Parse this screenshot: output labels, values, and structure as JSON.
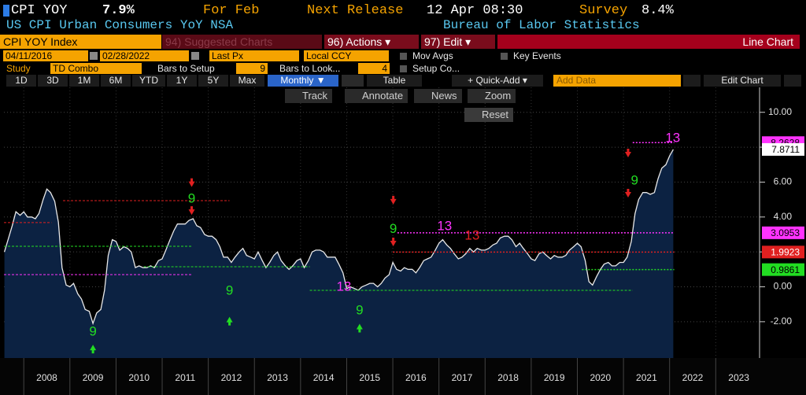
{
  "header": {
    "ticker": "CPI YOY",
    "value": "7.9%",
    "period": "For Feb",
    "next_release_label": "Next Release",
    "next_release": "12 Apr 08:30",
    "survey_label": "Survey",
    "survey": "8.4%",
    "description": "US CPI Urban Consumers YoY NSA",
    "source": "Bureau of Labor Statistics"
  },
  "menu": {
    "security": "CPI YOY Index",
    "suggested": "94) Suggested Charts",
    "actions": "96) Actions ▾",
    "edit": "97) Edit ▾",
    "chart_type": "Line Chart"
  },
  "settings": {
    "start": "04/11/2016",
    "end": "02/28/2022",
    "field": "Last Px",
    "currency": "Local CCY",
    "mov_avgs": "Mov Avgs",
    "key_events": "Key Events",
    "study_label": "Study",
    "study": "TD Combo",
    "bars_setup_label": "Bars to Setup",
    "bars_setup": "9",
    "bars_look_label": "Bars to Look...",
    "bars_look": "4",
    "setup_co": "Setup Co..."
  },
  "toolbar": {
    "ranges": [
      "1D",
      "3D",
      "1M",
      "6M",
      "YTD",
      "1Y",
      "5Y",
      "Max"
    ],
    "frequency": "Monthly ▼",
    "table": "Table",
    "quick_add": "+ Quick-Add ▾",
    "add_data": "Add Data",
    "edit_chart": "Edit Chart"
  },
  "chart_tools": {
    "track": "Track",
    "annotate": "Annotate",
    "news": "News",
    "zoom": "Zoom",
    "reset": "Reset"
  },
  "chart_data": {
    "type": "line",
    "x": [
      2007.58,
      2007.67,
      2007.75,
      2007.83,
      2007.92,
      2008,
      2008.08,
      2008.17,
      2008.25,
      2008.33,
      2008.42,
      2008.5,
      2008.58,
      2008.67,
      2008.75,
      2008.83,
      2008.92,
      2009,
      2009.08,
      2009.17,
      2009.25,
      2009.33,
      2009.42,
      2009.5,
      2009.58,
      2009.67,
      2009.75,
      2009.83,
      2009.92,
      2010,
      2010.08,
      2010.17,
      2010.25,
      2010.33,
      2010.42,
      2010.5,
      2010.58,
      2010.67,
      2010.75,
      2010.83,
      2010.92,
      2011,
      2011.08,
      2011.17,
      2011.25,
      2011.33,
      2011.42,
      2011.5,
      2011.58,
      2011.67,
      2011.75,
      2011.83,
      2011.92,
      2012,
      2012.08,
      2012.17,
      2012.25,
      2012.33,
      2012.42,
      2012.5,
      2012.58,
      2012.67,
      2012.75,
      2012.83,
      2012.92,
      2013,
      2013.08,
      2013.17,
      2013.25,
      2013.33,
      2013.42,
      2013.5,
      2013.58,
      2013.67,
      2013.75,
      2013.83,
      2013.92,
      2014,
      2014.08,
      2014.17,
      2014.25,
      2014.33,
      2014.42,
      2014.5,
      2014.58,
      2014.67,
      2014.75,
      2014.83,
      2014.92,
      2015,
      2015.08,
      2015.17,
      2015.25,
      2015.33,
      2015.42,
      2015.5,
      2015.58,
      2015.67,
      2015.75,
      2015.83,
      2015.92,
      2016,
      2016.08,
      2016.17,
      2016.25,
      2016.33,
      2016.42,
      2016.5,
      2016.58,
      2016.67,
      2016.75,
      2016.83,
      2016.92,
      2017,
      2017.08,
      2017.17,
      2017.25,
      2017.33,
      2017.42,
      2017.5,
      2017.58,
      2017.67,
      2017.75,
      2017.83,
      2017.92,
      2018,
      2018.08,
      2018.17,
      2018.25,
      2018.33,
      2018.42,
      2018.5,
      2018.58,
      2018.67,
      2018.75,
      2018.83,
      2018.92,
      2019,
      2019.08,
      2019.17,
      2019.25,
      2019.33,
      2019.42,
      2019.5,
      2019.58,
      2019.67,
      2019.75,
      2019.83,
      2019.92,
      2020,
      2020.08,
      2020.17,
      2020.25,
      2020.33,
      2020.42,
      2020.5,
      2020.58,
      2020.67,
      2020.75,
      2020.83,
      2020.92,
      2021,
      2021.08,
      2021.17,
      2021.25,
      2021.33,
      2021.42,
      2021.5,
      2021.58,
      2021.67,
      2021.75,
      2021.83,
      2021.92,
      2022,
      2022.08
    ],
    "series": [
      {
        "name": "CPI YOY Index",
        "color": "#e8e8e8",
        "fill": "#0c2242",
        "values": [
          2.0,
          2.8,
          3.5,
          4.3,
          4.1,
          4.3,
          4.0,
          4.0,
          3.9,
          4.2,
          5.0,
          5.6,
          5.4,
          4.9,
          3.7,
          1.1,
          0.1,
          0.0,
          0.2,
          -0.4,
          -0.7,
          -1.3,
          -1.4,
          -2.1,
          -1.5,
          -1.3,
          -0.2,
          1.8,
          2.7,
          2.6,
          2.1,
          2.3,
          2.2,
          2.0,
          1.1,
          1.2,
          1.1,
          1.1,
          1.2,
          1.1,
          1.5,
          1.6,
          2.1,
          2.7,
          3.2,
          3.6,
          3.6,
          3.6,
          3.8,
          3.9,
          3.5,
          3.4,
          3.0,
          2.9,
          2.9,
          2.7,
          2.3,
          1.7,
          1.7,
          1.4,
          1.7,
          2.0,
          2.2,
          1.8,
          1.7,
          1.6,
          2.0,
          1.5,
          1.1,
          1.4,
          1.8,
          2.0,
          1.5,
          1.2,
          1.0,
          1.2,
          1.5,
          1.6,
          1.1,
          1.5,
          2.0,
          2.1,
          2.1,
          2.0,
          1.7,
          1.7,
          1.7,
          1.3,
          0.8,
          -0.1,
          0.0,
          -0.1,
          -0.2,
          0.0,
          0.1,
          0.2,
          0.2,
          0.0,
          0.2,
          0.5,
          0.7,
          1.4,
          1.0,
          0.9,
          1.1,
          1.0,
          1.0,
          0.8,
          1.1,
          1.5,
          1.6,
          1.7,
          2.1,
          2.5,
          2.7,
          2.4,
          2.2,
          1.9,
          1.6,
          1.7,
          1.9,
          2.2,
          2.0,
          2.2,
          2.1,
          2.1,
          2.2,
          2.4,
          2.5,
          2.8,
          2.9,
          2.9,
          2.7,
          2.3,
          2.5,
          2.2,
          1.9,
          1.6,
          1.5,
          1.9,
          2.0,
          1.8,
          1.6,
          1.8,
          1.7,
          1.7,
          1.8,
          2.1,
          2.3,
          2.5,
          2.3,
          1.5,
          0.3,
          0.1,
          0.6,
          1.0,
          1.3,
          1.4,
          1.2,
          1.2,
          1.4,
          1.4,
          1.7,
          2.6,
          4.2,
          5.0,
          5.4,
          5.4,
          5.3,
          5.4,
          6.2,
          6.8,
          7.0,
          7.5,
          7.8711
        ]
      }
    ],
    "xlim": [
      2007.57,
      2023.95
    ],
    "xticks": [
      2008,
      2009,
      2010,
      2011,
      2012,
      2013,
      2014,
      2015,
      2016,
      2017,
      2018,
      2019,
      2020,
      2021,
      2022,
      2023
    ],
    "ylim": [
      -4.08,
      11.43
    ],
    "yticks": [
      {
        "value": -2,
        "label": "-2.00"
      },
      {
        "value": 0,
        "label": "0.00"
      },
      {
        "value": 2,
        "label": "2.00"
      },
      {
        "value": 4,
        "label": "4.00"
      },
      {
        "value": 6,
        "label": "6.00"
      },
      {
        "value": 8,
        "label": "8.00"
      },
      {
        "value": 10,
        "label": "10.00"
      }
    ],
    "grid": true,
    "reference_lines": [
      {
        "value": 8.2628,
        "from": 2021.2,
        "to": 2022.1,
        "color": "#ff33ff",
        "label_color": "#000000"
      },
      {
        "value": 3.0953,
        "from": 2016.1,
        "to": 2022.1,
        "color": "#ff33ff",
        "label_color": "#000000"
      },
      {
        "value": 1.9923,
        "from": 2016.0,
        "to": 2022.1,
        "color": "#e02020",
        "label_color": "#ffffff"
      },
      {
        "value": 0.9861,
        "from": 2020.1,
        "to": 2022.1,
        "color": "#22dd22",
        "label_color": "#000000"
      }
    ],
    "td_levels": [
      {
        "value": 4.94,
        "from": 2008.85,
        "to": 2012.46,
        "color": "#e02020"
      },
      {
        "value": 3.68,
        "from": 2007.57,
        "to": 2008.6,
        "color": "#e02020"
      },
      {
        "value": 2.32,
        "from": 2007.57,
        "to": 2011.65,
        "color": "#22dd22"
      },
      {
        "value": 0.7,
        "from": 2007.57,
        "to": 2011.65,
        "color": "#ff33ff"
      },
      {
        "value": 1.15,
        "from": 2010.6,
        "to": 2014.2,
        "color": "#22dd22"
      },
      {
        "value": -0.2,
        "from": 2014.2,
        "to": 2021.2,
        "color": "#22dd22"
      }
    ],
    "annotations": [
      {
        "text": "9",
        "x": 2009.5,
        "y": -2.6,
        "color": "#22dd22"
      },
      {
        "text": "9",
        "x": 2011.64,
        "y": 5.03,
        "color": "#22dd22"
      },
      {
        "text": "9",
        "x": 2012.46,
        "y": -0.25,
        "color": "#22dd22"
      },
      {
        "text": "13",
        "x": 2014.94,
        "y": -0.02,
        "color": "#ff33ff"
      },
      {
        "text": "9",
        "x": 2015.28,
        "y": -1.38,
        "color": "#22dd22"
      },
      {
        "text": "9",
        "x": 2016.01,
        "y": 3.3,
        "color": "#22dd22"
      },
      {
        "text": "13",
        "x": 2017.12,
        "y": 3.45,
        "color": "#ff33ff"
      },
      {
        "text": "13",
        "x": 2017.72,
        "y": 2.9,
        "color": "#e02020"
      },
      {
        "text": "9",
        "x": 2021.24,
        "y": 6.07,
        "color": "#22dd22"
      },
      {
        "text": "13",
        "x": 2022.07,
        "y": 8.5,
        "color": "#ff33ff"
      }
    ],
    "arrows": [
      {
        "x": 2009.5,
        "y": -3.5,
        "dir": "up",
        "color": "#22dd22"
      },
      {
        "x": 2011.64,
        "y": 5.9,
        "dir": "down",
        "color": "#e02020"
      },
      {
        "x": 2011.64,
        "y": 4.3,
        "dir": "down",
        "color": "#e02020"
      },
      {
        "x": 2012.46,
        "y": -1.9,
        "dir": "up",
        "color": "#22dd22"
      },
      {
        "x": 2015.28,
        "y": -2.3,
        "dir": "up",
        "color": "#22dd22"
      },
      {
        "x": 2016.01,
        "y": 4.9,
        "dir": "down",
        "color": "#e02020"
      },
      {
        "x": 2016.01,
        "y": 2.5,
        "dir": "down",
        "color": "#e02020"
      },
      {
        "x": 2021.1,
        "y": 7.6,
        "dir": "down",
        "color": "#e02020"
      },
      {
        "x": 2021.1,
        "y": 5.3,
        "dir": "down",
        "color": "#e02020"
      }
    ]
  }
}
